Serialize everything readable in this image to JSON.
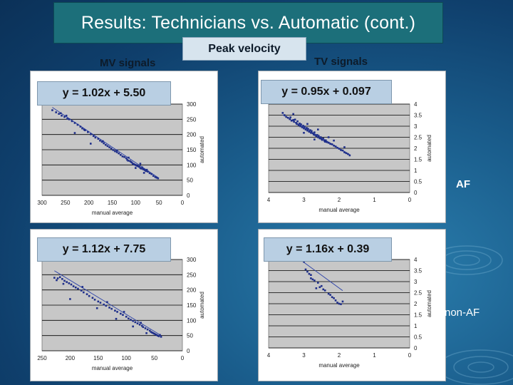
{
  "slide": {
    "title": "Results: Technicians vs. Automatic (cont.)",
    "mv_label": "MV signals",
    "peak_label": "Peak velocity",
    "tv_label": "TV signals",
    "af_label": "AF",
    "nonaf_label": "non-AF"
  },
  "colors": {
    "point": "#1f2f8a",
    "trend": "#2a40a8",
    "plot_bg": "#c7c7c7",
    "grid": "#000000"
  },
  "chart_data": [
    {
      "type": "scatter",
      "id": "mv-af",
      "equation": "y = 1.02x + 5.50",
      "xlabel": "manual average",
      "ylabel": "automated",
      "x_reversed": true,
      "xlim": [
        300,
        0
      ],
      "ylim": [
        0,
        300
      ],
      "xticks": [
        "300",
        "250",
        "200",
        "150",
        "100",
        "50",
        "0"
      ],
      "yticks": [
        "0",
        "50",
        "100",
        "150",
        "200",
        "250",
        "300"
      ],
      "trend": {
        "slope": 1.02,
        "intercept": 5.5
      },
      "points": [
        [
          278,
          280
        ],
        [
          270,
          273
        ],
        [
          264,
          268
        ],
        [
          258,
          262
        ],
        [
          252,
          258
        ],
        [
          246,
          252
        ],
        [
          242,
          250
        ],
        [
          236,
          244
        ],
        [
          230,
          238
        ],
        [
          224,
          232
        ],
        [
          218,
          226
        ],
        [
          214,
          220
        ],
        [
          208,
          214
        ],
        [
          202,
          208
        ],
        [
          196,
          201
        ],
        [
          190,
          195
        ],
        [
          186,
          190
        ],
        [
          180,
          186
        ],
        [
          176,
          180
        ],
        [
          172,
          176
        ],
        [
          168,
          171
        ],
        [
          164,
          166
        ],
        [
          160,
          162
        ],
        [
          156,
          158
        ],
        [
          152,
          154
        ],
        [
          148,
          149
        ],
        [
          144,
          145
        ],
        [
          140,
          142
        ],
        [
          136,
          138
        ],
        [
          132,
          133
        ],
        [
          128,
          128
        ],
        [
          124,
          126
        ],
        [
          120,
          122
        ],
        [
          118,
          117
        ],
        [
          116,
          114
        ],
        [
          112,
          113
        ],
        [
          110,
          110
        ],
        [
          108,
          108
        ],
        [
          106,
          104
        ],
        [
          104,
          103
        ],
        [
          102,
          101
        ],
        [
          100,
          100
        ],
        [
          98,
          98
        ],
        [
          96,
          97
        ],
        [
          94,
          95
        ],
        [
          92,
          94
        ],
        [
          90,
          90
        ],
        [
          88,
          88
        ],
        [
          86,
          92
        ],
        [
          84,
          86
        ],
        [
          82,
          85
        ],
        [
          80,
          83
        ],
        [
          78,
          80
        ],
        [
          76,
          84
        ],
        [
          74,
          78
        ],
        [
          70,
          73
        ],
        [
          66,
          70
        ],
        [
          62,
          64
        ],
        [
          58,
          60
        ],
        [
          55,
          58
        ],
        [
          52,
          56
        ],
        [
          230,
          205
        ],
        [
          210,
          216
        ],
        [
          196,
          170
        ],
        [
          170,
          178
        ],
        [
          140,
          148
        ],
        [
          115,
          124
        ],
        [
          100,
          90
        ],
        [
          90,
          104
        ],
        [
          82,
          74
        ],
        [
          260,
          270
        ],
        [
          248,
          262
        ]
      ]
    },
    {
      "type": "scatter",
      "id": "tv-af",
      "equation": "y = 0.95x + 0.097",
      "xlabel": "manual average",
      "ylabel": "automated",
      "x_reversed": true,
      "xlim": [
        4,
        0
      ],
      "ylim": [
        0,
        4
      ],
      "xticks": [
        "4",
        "3",
        "2",
        "1",
        "0"
      ],
      "yticks": [
        "0",
        "0.5",
        "1",
        "1.5",
        "2",
        "2.5",
        "3",
        "3.5",
        "4"
      ],
      "trend": {
        "slope": 0.95,
        "intercept": 0.097
      },
      "points": [
        [
          3.55,
          3.5
        ],
        [
          3.5,
          3.42
        ],
        [
          3.45,
          3.38
        ],
        [
          3.4,
          3.32
        ],
        [
          3.38,
          3.4
        ],
        [
          3.35,
          3.25
        ],
        [
          3.3,
          3.28
        ],
        [
          3.28,
          3.2
        ],
        [
          3.25,
          3.3
        ],
        [
          3.22,
          3.15
        ],
        [
          3.2,
          3.1
        ],
        [
          3.18,
          3.22
        ],
        [
          3.15,
          3.05
        ],
        [
          3.12,
          3.12
        ],
        [
          3.1,
          3.0
        ],
        [
          3.08,
          3.08
        ],
        [
          3.05,
          2.95
        ],
        [
          3.02,
          3.02
        ],
        [
          3.0,
          2.9
        ],
        [
          2.98,
          2.98
        ],
        [
          2.95,
          2.85
        ],
        [
          2.92,
          2.92
        ],
        [
          2.9,
          2.8
        ],
        [
          2.88,
          2.88
        ],
        [
          2.85,
          2.75
        ],
        [
          2.82,
          2.82
        ],
        [
          2.8,
          2.7
        ],
        [
          2.78,
          2.78
        ],
        [
          2.75,
          2.68
        ],
        [
          2.72,
          2.62
        ],
        [
          2.7,
          2.72
        ],
        [
          2.68,
          2.6
        ],
        [
          2.65,
          2.55
        ],
        [
          2.62,
          2.6
        ],
        [
          2.6,
          2.5
        ],
        [
          2.58,
          2.56
        ],
        [
          2.55,
          2.45
        ],
        [
          2.52,
          2.5
        ],
        [
          2.5,
          2.42
        ],
        [
          2.48,
          2.38
        ],
        [
          2.45,
          2.44
        ],
        [
          2.42,
          2.35
        ],
        [
          2.4,
          2.3
        ],
        [
          2.38,
          2.36
        ],
        [
          2.35,
          2.28
        ],
        [
          2.3,
          2.25
        ],
        [
          2.25,
          2.2
        ],
        [
          2.2,
          2.18
        ],
        [
          2.15,
          2.12
        ],
        [
          2.1,
          2.08
        ],
        [
          2.05,
          2.02
        ],
        [
          2.0,
          1.98
        ],
        [
          1.95,
          1.92
        ],
        [
          1.9,
          1.9
        ],
        [
          1.85,
          1.82
        ],
        [
          1.8,
          1.78
        ],
        [
          1.75,
          1.74
        ],
        [
          1.7,
          1.68
        ],
        [
          3.6,
          3.6
        ],
        [
          3.3,
          3.55
        ],
        [
          2.9,
          3.1
        ],
        [
          2.6,
          2.85
        ],
        [
          2.3,
          2.5
        ],
        [
          2.15,
          2.35
        ],
        [
          1.85,
          2.05
        ],
        [
          3.0,
          2.7
        ],
        [
          2.7,
          2.4
        ]
      ]
    },
    {
      "type": "scatter",
      "id": "mv-nonaf",
      "equation": "y = 1.12x + 7.75",
      "xlabel": "manual average",
      "ylabel": "automated",
      "x_reversed": true,
      "xlim": [
        250,
        0
      ],
      "ylim": [
        0,
        300
      ],
      "xticks": [
        "250",
        "200",
        "150",
        "100",
        "50",
        "0"
      ],
      "yticks": [
        "0",
        "50",
        "100",
        "150",
        "200",
        "250",
        "300"
      ],
      "trend": {
        "slope": 1.12,
        "intercept": 7.75
      },
      "points": [
        [
          228,
          240
        ],
        [
          222,
          238
        ],
        [
          218,
          242
        ],
        [
          214,
          236
        ],
        [
          210,
          230
        ],
        [
          206,
          226
        ],
        [
          202,
          222
        ],
        [
          198,
          218
        ],
        [
          194,
          212
        ],
        [
          190,
          208
        ],
        [
          186,
          204
        ],
        [
          180,
          198
        ],
        [
          176,
          192
        ],
        [
          170,
          186
        ],
        [
          166,
          180
        ],
        [
          160,
          174
        ],
        [
          156,
          168
        ],
        [
          150,
          162
        ],
        [
          146,
          158
        ],
        [
          140,
          152
        ],
        [
          136,
          148
        ],
        [
          130,
          142
        ],
        [
          126,
          138
        ],
        [
          120,
          132
        ],
        [
          116,
          128
        ],
        [
          110,
          122
        ],
        [
          106,
          118
        ],
        [
          100,
          112
        ],
        [
          96,
          106
        ],
        [
          92,
          102
        ],
        [
          88,
          98
        ],
        [
          84,
          94
        ],
        [
          80,
          90
        ],
        [
          76,
          86
        ],
        [
          72,
          82
        ],
        [
          70,
          78
        ],
        [
          66,
          74
        ],
        [
          62,
          70
        ],
        [
          58,
          66
        ],
        [
          56,
          62
        ],
        [
          54,
          60
        ],
        [
          52,
          58
        ],
        [
          50,
          56
        ],
        [
          48,
          54
        ],
        [
          46,
          52
        ],
        [
          44,
          50
        ],
        [
          42,
          48
        ],
        [
          40,
          52
        ],
        [
          38,
          46
        ],
        [
          200,
          170
        ],
        [
          178,
          210
        ],
        [
          152,
          140
        ],
        [
          134,
          160
        ],
        [
          118,
          105
        ],
        [
          104,
          128
        ],
        [
          88,
          80
        ],
        [
          74,
          92
        ],
        [
          64,
          58
        ],
        [
          224,
          232
        ],
        [
          212,
          220
        ]
      ]
    },
    {
      "type": "scatter",
      "id": "tv-nonaf",
      "equation": "y = 1.16x + 0.39",
      "xlabel": "manual average",
      "ylabel": "automated",
      "x_reversed": true,
      "xlim": [
        4,
        0
      ],
      "ylim": [
        0,
        4
      ],
      "xticks": [
        "4",
        "3",
        "2",
        "1",
        "0"
      ],
      "yticks": [
        "0",
        "0.5",
        "1",
        "1.5",
        "2",
        "2.5",
        "3",
        "3.5",
        "4"
      ],
      "trend": {
        "slope": 1.16,
        "intercept": 0.39
      },
      "points": [
        [
          3.0,
          3.9
        ],
        [
          2.95,
          3.55
        ],
        [
          2.9,
          3.45
        ],
        [
          2.85,
          3.35
        ],
        [
          2.8,
          3.15
        ],
        [
          2.75,
          3.1
        ],
        [
          2.7,
          3.05
        ],
        [
          2.6,
          2.95
        ],
        [
          2.55,
          2.75
        ],
        [
          2.5,
          2.8
        ],
        [
          2.45,
          2.65
        ],
        [
          2.4,
          2.6
        ],
        [
          2.3,
          2.45
        ],
        [
          2.25,
          2.4
        ],
        [
          2.2,
          2.3
        ],
        [
          2.15,
          2.25
        ],
        [
          2.1,
          2.15
        ],
        [
          2.05,
          2.05
        ],
        [
          2.0,
          2.0
        ],
        [
          1.95,
          1.98
        ],
        [
          1.9,
          2.1
        ],
        [
          2.8,
          3.3
        ],
        [
          2.65,
          2.7
        ]
      ]
    }
  ]
}
